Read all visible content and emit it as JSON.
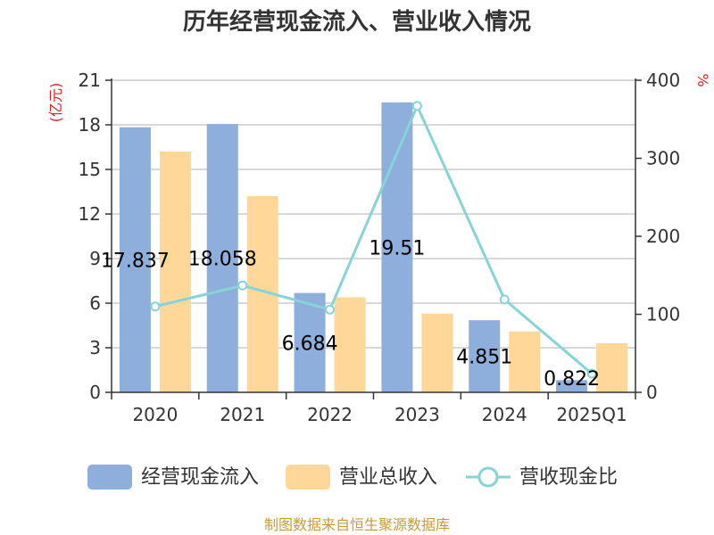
{
  "chart_data": {
    "type": "bar",
    "title": "历年经营现金流入、营业收入情况",
    "categories": [
      "2020",
      "2021",
      "2022",
      "2023",
      "2024",
      "2025Q1"
    ],
    "series": [
      {
        "name": "经营现金流入",
        "axis": "left",
        "color": "#8eaedb",
        "values": [
          17.837,
          18.058,
          6.684,
          19.51,
          4.851,
          0.822
        ],
        "labels": [
          "17.837",
          "18.058",
          "6.684",
          "19.51",
          "4.851",
          "0.822"
        ]
      },
      {
        "name": "营业总收入",
        "axis": "left",
        "color": "#ffd899",
        "values": [
          16.2,
          13.2,
          6.4,
          5.3,
          4.1,
          3.3
        ]
      },
      {
        "name": "营收现金比",
        "axis": "right",
        "type": "line",
        "color": "#86d3d8",
        "values": [
          110,
          137,
          106,
          367,
          119,
          24
        ]
      }
    ],
    "left_axis": {
      "unit": "(亿元)",
      "min": 0,
      "max": 21,
      "ticks": [
        0,
        3,
        6,
        9,
        12,
        15,
        18,
        21
      ]
    },
    "right_axis": {
      "unit": "%",
      "min": 0,
      "max": 400,
      "ticks": [
        0,
        100,
        200,
        300,
        400
      ]
    },
    "grid": true,
    "legend_position": "bottom"
  },
  "source": "制图数据来自恒生聚源数据库"
}
